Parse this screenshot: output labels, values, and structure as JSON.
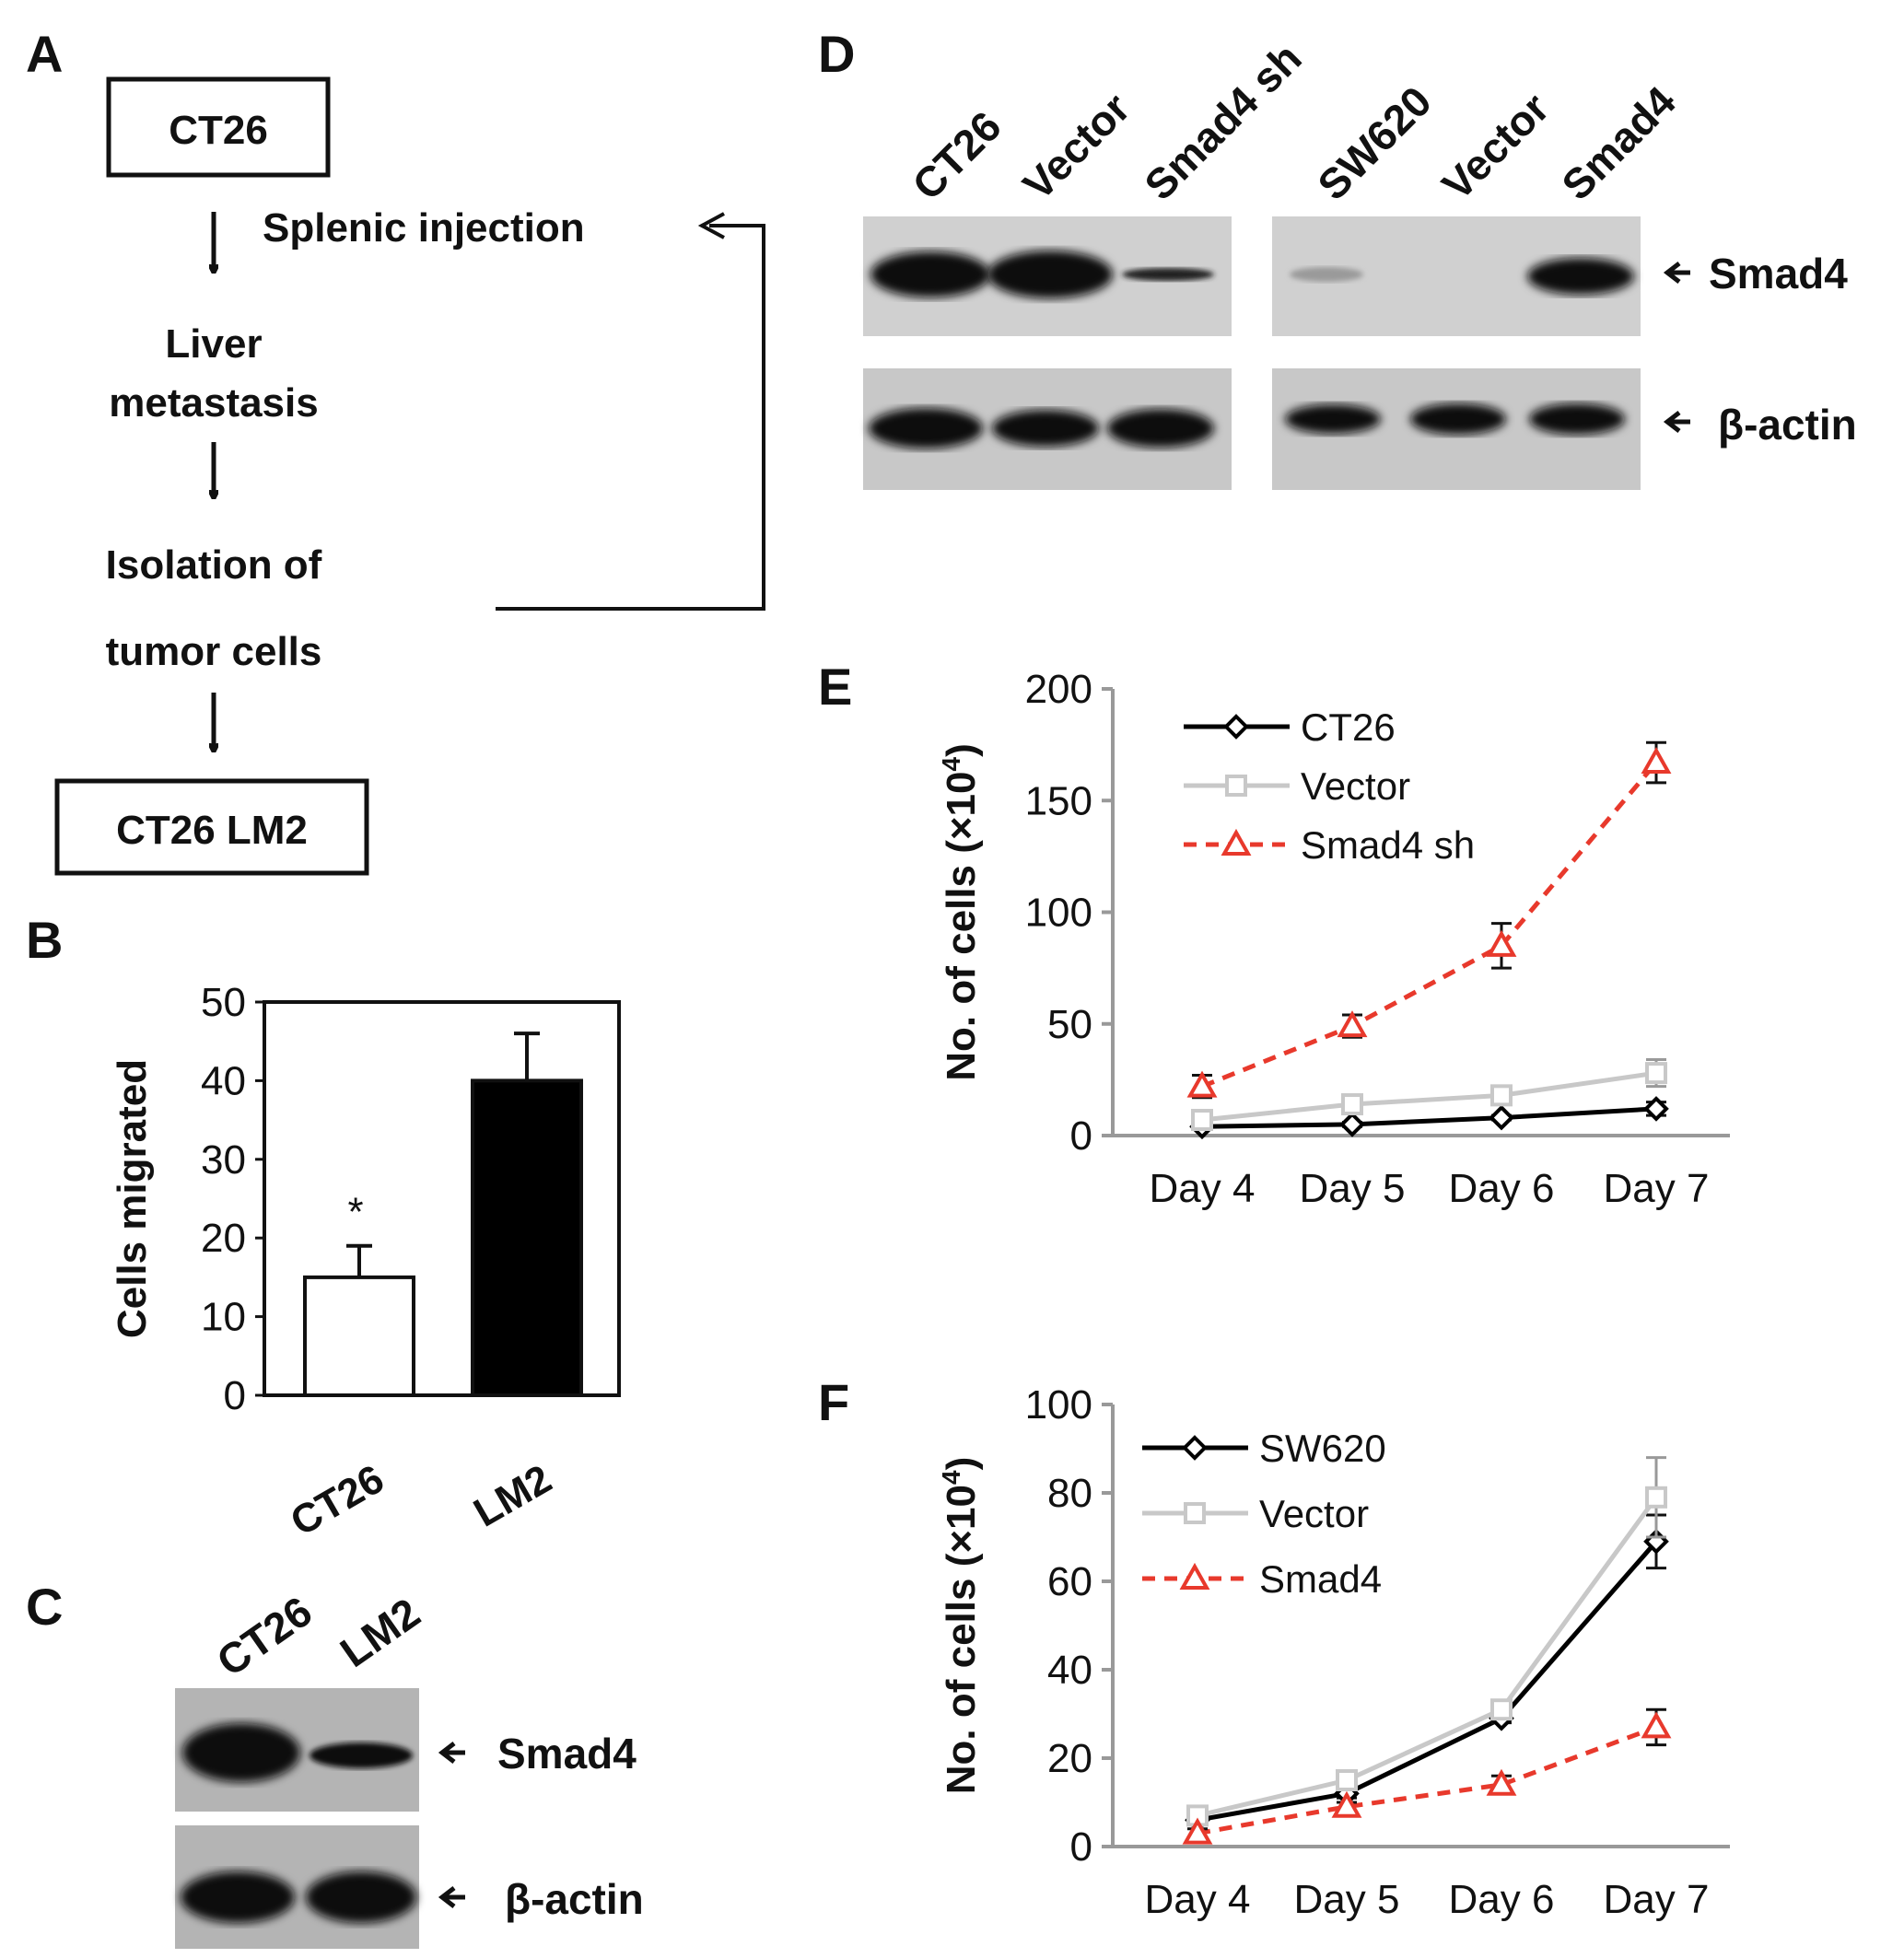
{
  "panels": {
    "A": {
      "letter": "A",
      "top_box": "CT26",
      "step1": "Splenic injection",
      "step2_line1": "Liver",
      "step2_line2": "metastasis",
      "step3_line1": "Isolation of",
      "step3_line2": "tumor cells",
      "bottom_box": "CT26 LM2"
    },
    "B": {
      "letter": "B"
    },
    "C": {
      "letter": "C",
      "lanes": [
        "CT26",
        "LM2"
      ],
      "bands": [
        "Smad4",
        "β-actin"
      ]
    },
    "D": {
      "letter": "D",
      "lanes_left": [
        "CT26",
        "Vector",
        "Smad4 sh"
      ],
      "lanes_right": [
        "SW620",
        "Vector",
        "Smad4"
      ],
      "bands": [
        "Smad4",
        "β-actin"
      ]
    },
    "E": {
      "letter": "E"
    },
    "F": {
      "letter": "F"
    }
  },
  "chart_data": [
    {
      "id": "B",
      "type": "bar",
      "categories": [
        "CT26",
        "LM2"
      ],
      "values": [
        15,
        40
      ],
      "errors": [
        4,
        6
      ],
      "bar_colors": [
        "#ffffff",
        "#000000"
      ],
      "annotation": "*",
      "ylabel": "Cells migrated",
      "ylim": [
        0,
        50
      ],
      "yticks": [
        0,
        10,
        20,
        30,
        40,
        50
      ]
    },
    {
      "id": "E",
      "type": "line",
      "categories": [
        "Day 4",
        "Day 5",
        "Day 6",
        "Day 7"
      ],
      "ylabel": "No. of cells (×10",
      "ylabel_sup": "4",
      "ylabel_end": ")",
      "ylim": [
        0,
        200
      ],
      "yticks": [
        0,
        50,
        100,
        150,
        200
      ],
      "legend_position": "top-left",
      "series": [
        {
          "name": "CT26",
          "values": [
            4,
            5,
            8,
            12
          ],
          "errors": [
            1,
            1,
            1,
            3
          ],
          "color": "#000000",
          "dash": false,
          "marker": "diamond"
        },
        {
          "name": "Vector",
          "values": [
            7,
            14,
            18,
            28
          ],
          "errors": [
            2,
            3,
            3,
            6
          ],
          "color": "#c8c8c8",
          "dash": false,
          "marker": "square"
        },
        {
          "name": "Smad4 sh",
          "values": [
            22,
            49,
            85,
            167
          ],
          "errors": [
            5,
            5,
            10,
            9
          ],
          "color": "#e8392c",
          "dash": true,
          "marker": "triangle"
        }
      ]
    },
    {
      "id": "F",
      "type": "line",
      "categories": [
        "Day 4",
        "Day 5",
        "Day 6",
        "Day 7"
      ],
      "ylabel": "No. of cells (×10",
      "ylabel_sup": "4",
      "ylabel_end": ")",
      "ylim": [
        0,
        100
      ],
      "yticks": [
        0,
        20,
        40,
        60,
        80,
        100
      ],
      "legend_position": "top-left",
      "series": [
        {
          "name": "SW620",
          "values": [
            6,
            12,
            29,
            69
          ],
          "errors": [
            1,
            1,
            1,
            6
          ],
          "color": "#000000",
          "dash": false,
          "marker": "diamond"
        },
        {
          "name": "Vector",
          "values": [
            7,
            15,
            31,
            79
          ],
          "errors": [
            1,
            1,
            2,
            9
          ],
          "color": "#c8c8c8",
          "dash": false,
          "marker": "square"
        },
        {
          "name": "Smad4",
          "values": [
            3,
            9,
            14,
            27
          ],
          "errors": [
            1,
            1,
            2,
            4
          ],
          "color": "#e8392c",
          "dash": true,
          "marker": "triangle"
        }
      ]
    }
  ]
}
